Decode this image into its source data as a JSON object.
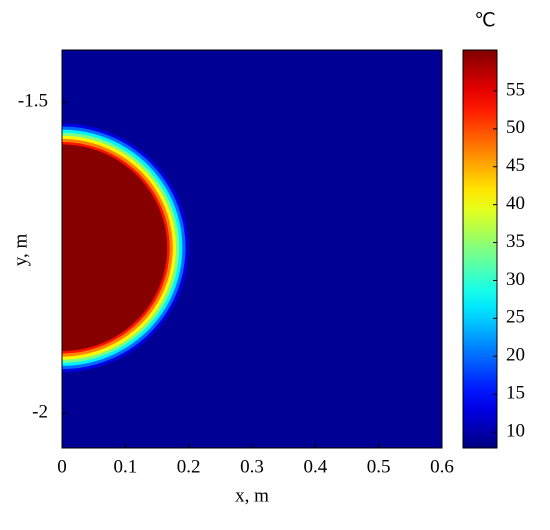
{
  "chart_data": {
    "type": "contour",
    "xlabel": "x, m",
    "ylabel": "y, m",
    "colorbar_label": "℃",
    "xlim": [
      0,
      0.6
    ],
    "xticks": [
      0,
      0.1,
      0.2,
      0.3,
      0.4,
      0.5,
      0.6
    ],
    "ylim": [
      -2.056,
      -1.416
    ],
    "yticks": [
      -2,
      -1.5
    ],
    "colormap": "jet",
    "clim": [
      7.9,
      60.4
    ],
    "colorbar_ticks": [
      10,
      15,
      20,
      25,
      30,
      35,
      40,
      45,
      50,
      55
    ],
    "background_value": 9,
    "center": [
      0,
      -1.734
    ],
    "rings": [
      {
        "radius": 0.2,
        "value": 13
      },
      {
        "radius": 0.195,
        "value": 20
      },
      {
        "radius": 0.19,
        "value": 27
      },
      {
        "radius": 0.185,
        "value": 34
      },
      {
        "radius": 0.18,
        "value": 41
      },
      {
        "radius": 0.175,
        "value": 47
      },
      {
        "radius": 0.17,
        "value": 53
      },
      {
        "radius": 0.166,
        "value": 60
      }
    ]
  }
}
